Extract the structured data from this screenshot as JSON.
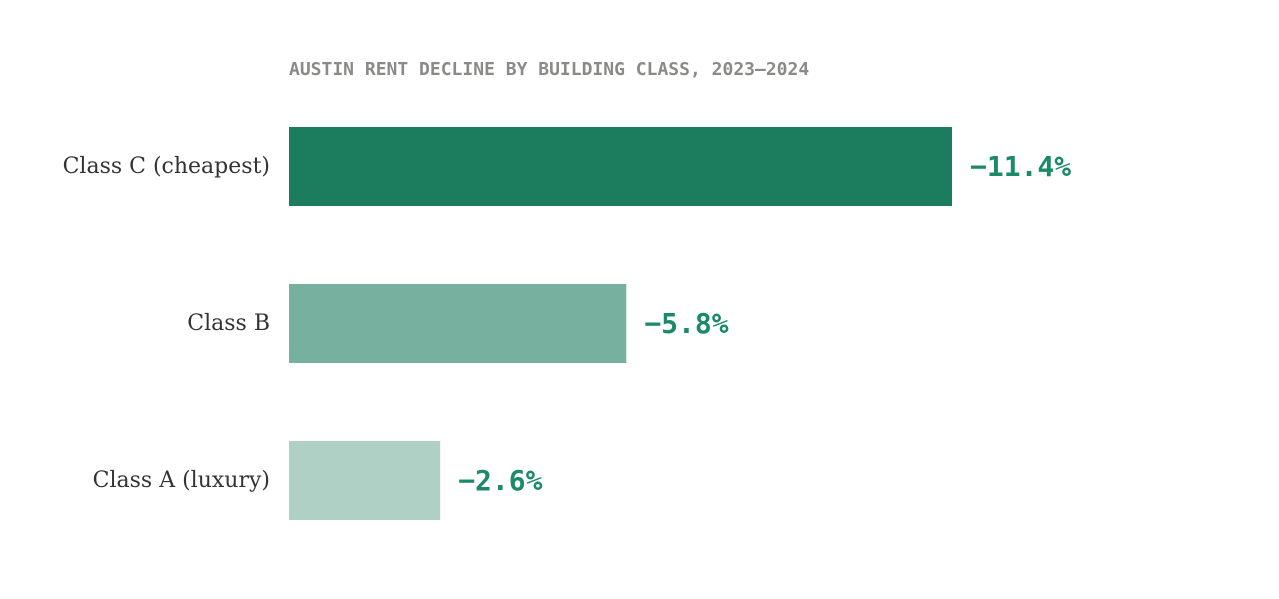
{
  "chart_data": {
    "type": "bar",
    "orientation": "horizontal",
    "title": "AUSTIN RENT DECLINE BY BUILDING CLASS, 2023–2024",
    "categories": [
      "Class C (cheapest)",
      "Class B",
      "Class A (luxury)"
    ],
    "values": [
      -11.4,
      -5.8,
      -2.6
    ],
    "value_labels": [
      "−11.4%",
      "−5.8%",
      "−2.6%"
    ],
    "unit": "%",
    "xlim": [
      0,
      -11.4
    ],
    "grid": false,
    "legend": "none",
    "colors": {
      "bars": [
        "#1b7c5e",
        "#77b09e",
        "#afd0c4"
      ],
      "value_label": "#1b8a68",
      "title": "#8a8a86",
      "category_label": "#333333"
    }
  }
}
